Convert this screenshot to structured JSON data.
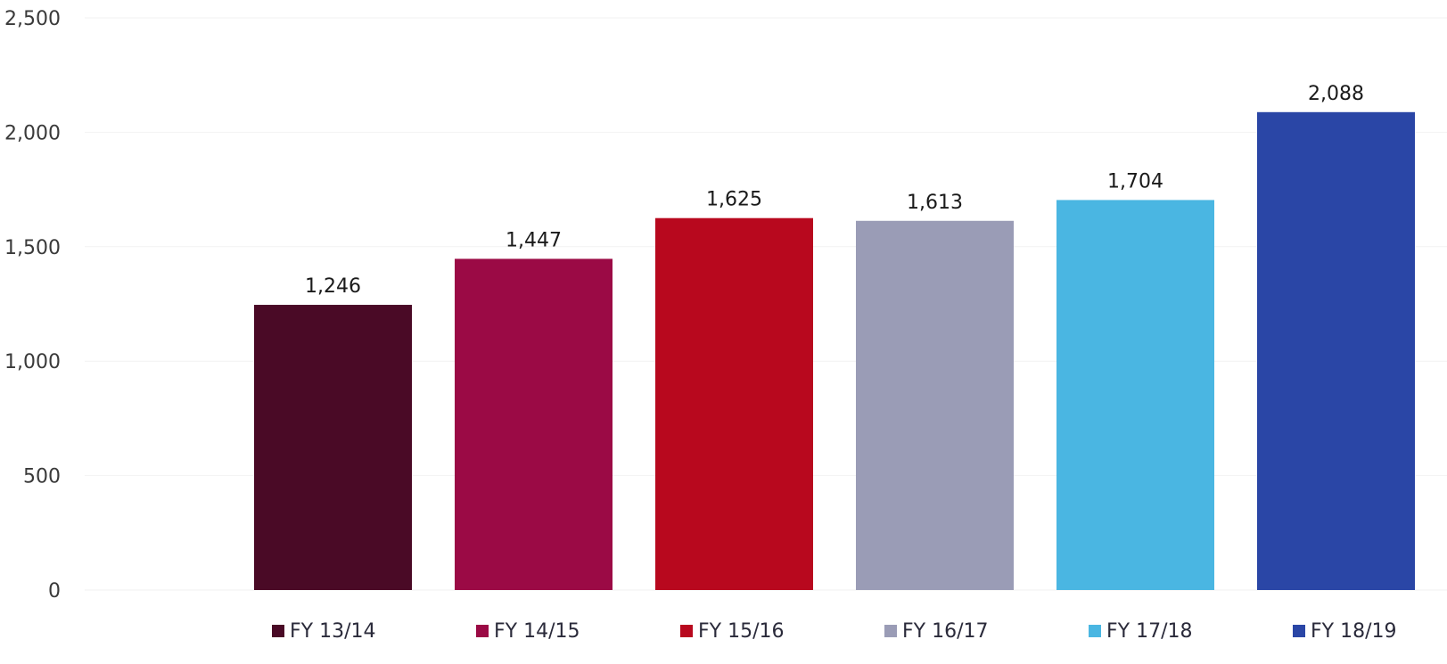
{
  "chart_data": {
    "type": "bar",
    "categories": [
      "FY 13/14",
      "FY 14/15",
      "FY 15/16",
      "FY 16/17",
      "FY 17/18",
      "FY 18/19"
    ],
    "values": [
      1246,
      1447,
      1625,
      1613,
      1704,
      2088
    ],
    "value_labels": [
      "1,246",
      "1,447",
      "1,625",
      "1,613",
      "1,704",
      "2,088"
    ],
    "colors": [
      "#4a0a26",
      "#9b0a45",
      "#b8081e",
      "#9a9cb6",
      "#4ab6e2",
      "#2a46a6"
    ],
    "yticks": [
      0,
      500,
      1000,
      1500,
      2000,
      2500
    ],
    "ytick_labels": [
      "0",
      "500",
      "1,000",
      "1,500",
      "2,000",
      "2,500"
    ],
    "ylim": [
      0,
      2500
    ],
    "grid": true,
    "legend_position": "bottom"
  }
}
